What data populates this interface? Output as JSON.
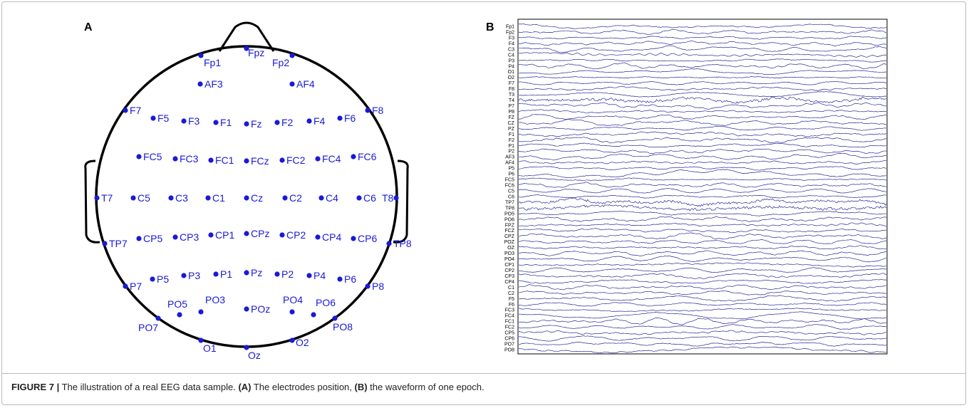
{
  "panel_a": {
    "label": "A",
    "electrodes": [
      "Fp1",
      "Fpz",
      "Fp2",
      "AF3",
      "AF4",
      "F7",
      "F5",
      "F3",
      "F1",
      "Fz",
      "F2",
      "F4",
      "F6",
      "F8",
      "FC5",
      "FC3",
      "FC1",
      "FCz",
      "FC2",
      "FC4",
      "FC6",
      "T7",
      "C5",
      "C3",
      "C1",
      "Cz",
      "C2",
      "C4",
      "C6",
      "T8",
      "TP7",
      "CP5",
      "CP3",
      "CP1",
      "CPz",
      "CP2",
      "CP4",
      "CP6",
      "TP8",
      "P7",
      "P5",
      "P3",
      "P1",
      "Pz",
      "P2",
      "P4",
      "P6",
      "P8",
      "PO5",
      "PO3",
      "POz",
      "PO4",
      "PO6",
      "PO7",
      "PO8",
      "O1",
      "Oz",
      "O2"
    ]
  },
  "panel_b": {
    "label": "B",
    "channels": [
      "Fp1",
      "Fp2",
      "F3",
      "F4",
      "C3",
      "C4",
      "P3",
      "P4",
      "O1",
      "O2",
      "F7",
      "F8",
      "T3",
      "T4",
      "P7",
      "P8",
      "FZ",
      "CZ",
      "PZ",
      "F1",
      "F2",
      "P1",
      "P2",
      "AF3",
      "AF4",
      "P5",
      "P6",
      "FC5",
      "FC6",
      "C5",
      "C6",
      "TP7",
      "TP8",
      "PO5",
      "PO6",
      "FPZ",
      "FCZ",
      "CPZ",
      "POZ",
      "OZ",
      "PO3",
      "PO4",
      "CP1",
      "CP2",
      "CP3",
      "CP4",
      "C1",
      "C2",
      "F5",
      "F6",
      "FC3",
      "FC4",
      "FC1",
      "FC2",
      "CP5",
      "CP6",
      "PO7",
      "PO8"
    ]
  },
  "caption": {
    "figure": "FIGURE 7 |",
    "text1": " The illustration of a real EEG data sample. ",
    "a": "(A)",
    "text2": " The electrodes position, ",
    "b": "(B)",
    "text3": " the waveform of one epoch."
  }
}
